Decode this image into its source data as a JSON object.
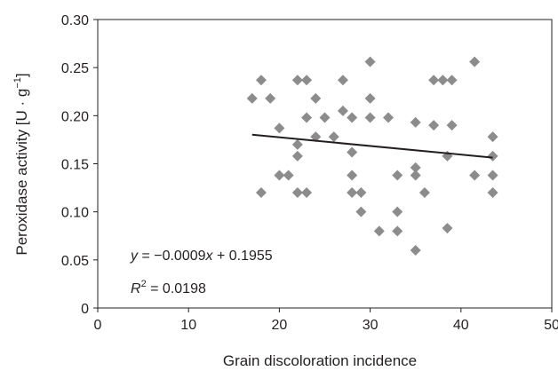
{
  "chart_data": {
    "type": "scatter",
    "title": "",
    "xlabel": "Grain discoloration incidence",
    "ylabel": "Peroxidase activity [U · g",
    "ylabel_superscript": "−1",
    "ylabel_close": "]",
    "xlim": [
      0,
      50
    ],
    "ylim": [
      0,
      0.3
    ],
    "x_ticks": [
      0,
      10,
      20,
      30,
      40,
      50
    ],
    "y_ticks": [
      0,
      0.05,
      0.1,
      0.15,
      0.2,
      0.25,
      0.3
    ],
    "x_tick_labels": [
      "0",
      "10",
      "20",
      "30",
      "40",
      "50"
    ],
    "y_tick_labels": [
      "0",
      "0.05",
      "0.10",
      "0.15",
      "0.20",
      "0.25",
      "0.30"
    ],
    "grid": false,
    "marker": "diamond",
    "marker_color": "#8c8c8c",
    "line_color": "#231f20",
    "points": [
      {
        "x": 17,
        "y": 0.218
      },
      {
        "x": 18,
        "y": 0.237
      },
      {
        "x": 18,
        "y": 0.12
      },
      {
        "x": 19,
        "y": 0.218
      },
      {
        "x": 20,
        "y": 0.187
      },
      {
        "x": 20,
        "y": 0.138
      },
      {
        "x": 21,
        "y": 0.138
      },
      {
        "x": 22,
        "y": 0.237
      },
      {
        "x": 22,
        "y": 0.17
      },
      {
        "x": 22,
        "y": 0.158
      },
      {
        "x": 22,
        "y": 0.12
      },
      {
        "x": 23,
        "y": 0.237
      },
      {
        "x": 23,
        "y": 0.198
      },
      {
        "x": 23,
        "y": 0.12
      },
      {
        "x": 24,
        "y": 0.218
      },
      {
        "x": 24,
        "y": 0.178
      },
      {
        "x": 25,
        "y": 0.198
      },
      {
        "x": 26,
        "y": 0.178
      },
      {
        "x": 27,
        "y": 0.237
      },
      {
        "x": 27,
        "y": 0.205
      },
      {
        "x": 28,
        "y": 0.198
      },
      {
        "x": 28,
        "y": 0.162
      },
      {
        "x": 28,
        "y": 0.138
      },
      {
        "x": 28,
        "y": 0.12
      },
      {
        "x": 29,
        "y": 0.12
      },
      {
        "x": 29,
        "y": 0.1
      },
      {
        "x": 30,
        "y": 0.256
      },
      {
        "x": 30,
        "y": 0.218
      },
      {
        "x": 30,
        "y": 0.198
      },
      {
        "x": 31,
        "y": 0.08
      },
      {
        "x": 32,
        "y": 0.198
      },
      {
        "x": 33,
        "y": 0.138
      },
      {
        "x": 33,
        "y": 0.1
      },
      {
        "x": 33,
        "y": 0.08
      },
      {
        "x": 35,
        "y": 0.193
      },
      {
        "x": 35,
        "y": 0.146
      },
      {
        "x": 35,
        "y": 0.138
      },
      {
        "x": 35,
        "y": 0.06
      },
      {
        "x": 36,
        "y": 0.12
      },
      {
        "x": 37,
        "y": 0.237
      },
      {
        "x": 37,
        "y": 0.19
      },
      {
        "x": 38,
        "y": 0.237
      },
      {
        "x": 38.5,
        "y": 0.158
      },
      {
        "x": 38.5,
        "y": 0.083
      },
      {
        "x": 39,
        "y": 0.237
      },
      {
        "x": 39,
        "y": 0.19
      },
      {
        "x": 41.5,
        "y": 0.256
      },
      {
        "x": 41.5,
        "y": 0.138
      },
      {
        "x": 43.5,
        "y": 0.178
      },
      {
        "x": 43.5,
        "y": 0.158
      },
      {
        "x": 43.5,
        "y": 0.138
      },
      {
        "x": 43.5,
        "y": 0.12
      }
    ],
    "trendline": {
      "slope": -0.0009,
      "intercept": 0.1955,
      "x_range": [
        17,
        43.5
      ]
    },
    "annotations": {
      "equation_y": "y",
      "equation_rest": " = −0.0009",
      "equation_x": "x",
      "equation_tail": " + 0.1955",
      "r2_label": "R",
      "r2_sup": "2",
      "r2_value": " = 0.0198"
    }
  }
}
